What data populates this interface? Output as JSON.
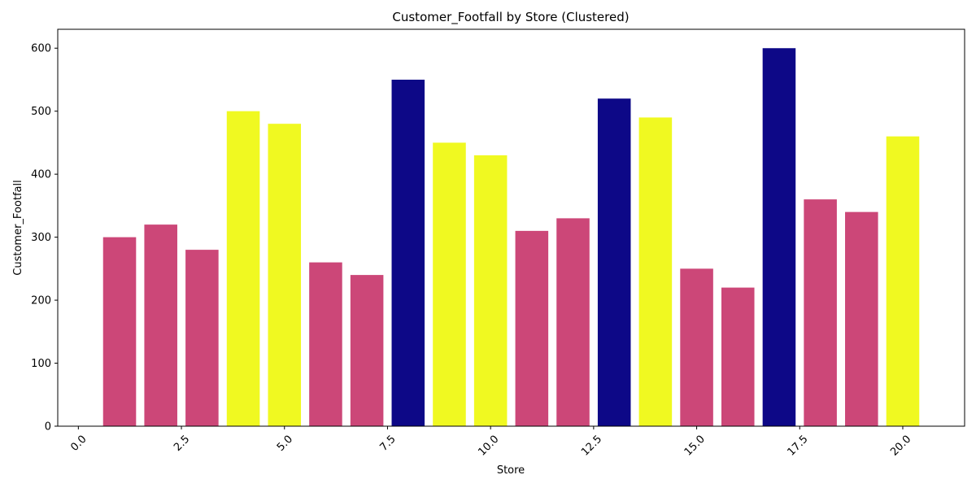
{
  "chart_data": {
    "type": "bar",
    "title": "Customer_Footfall by Store (Clustered)",
    "xlabel": "Store",
    "ylabel": "Customer_Footfall",
    "xlim": [
      -0.5,
      21.5
    ],
    "ylim": [
      0,
      630
    ],
    "x_ticks": [
      0.0,
      2.5,
      5.0,
      7.5,
      10.0,
      12.5,
      15.0,
      17.5,
      20.0
    ],
    "x_tick_labels": [
      "0.0",
      "2.5",
      "5.0",
      "7.5",
      "10.0",
      "12.5",
      "15.0",
      "17.5",
      "20.0"
    ],
    "y_ticks": [
      0,
      100,
      200,
      300,
      400,
      500,
      600
    ],
    "y_tick_labels": [
      "0",
      "100",
      "200",
      "300",
      "400",
      "500",
      "600"
    ],
    "grid": false,
    "legend": "none",
    "colors": {
      "cluster_0": "#cc4778",
      "cluster_1": "#f0f921",
      "cluster_2": "#0d0887"
    },
    "bars": [
      {
        "store": 1,
        "value": 300,
        "cluster": 0
      },
      {
        "store": 2,
        "value": 320,
        "cluster": 0
      },
      {
        "store": 3,
        "value": 280,
        "cluster": 0
      },
      {
        "store": 4,
        "value": 500,
        "cluster": 1
      },
      {
        "store": 5,
        "value": 480,
        "cluster": 1
      },
      {
        "store": 6,
        "value": 260,
        "cluster": 0
      },
      {
        "store": 7,
        "value": 240,
        "cluster": 0
      },
      {
        "store": 8,
        "value": 550,
        "cluster": 2
      },
      {
        "store": 9,
        "value": 450,
        "cluster": 1
      },
      {
        "store": 10,
        "value": 430,
        "cluster": 1
      },
      {
        "store": 11,
        "value": 310,
        "cluster": 0
      },
      {
        "store": 12,
        "value": 330,
        "cluster": 0
      },
      {
        "store": 13,
        "value": 520,
        "cluster": 2
      },
      {
        "store": 14,
        "value": 490,
        "cluster": 1
      },
      {
        "store": 15,
        "value": 250,
        "cluster": 0
      },
      {
        "store": 16,
        "value": 220,
        "cluster": 0
      },
      {
        "store": 17,
        "value": 600,
        "cluster": 2
      },
      {
        "store": 18,
        "value": 360,
        "cluster": 0
      },
      {
        "store": 19,
        "value": 340,
        "cluster": 0
      },
      {
        "store": 20,
        "value": 460,
        "cluster": 1
      }
    ]
  }
}
